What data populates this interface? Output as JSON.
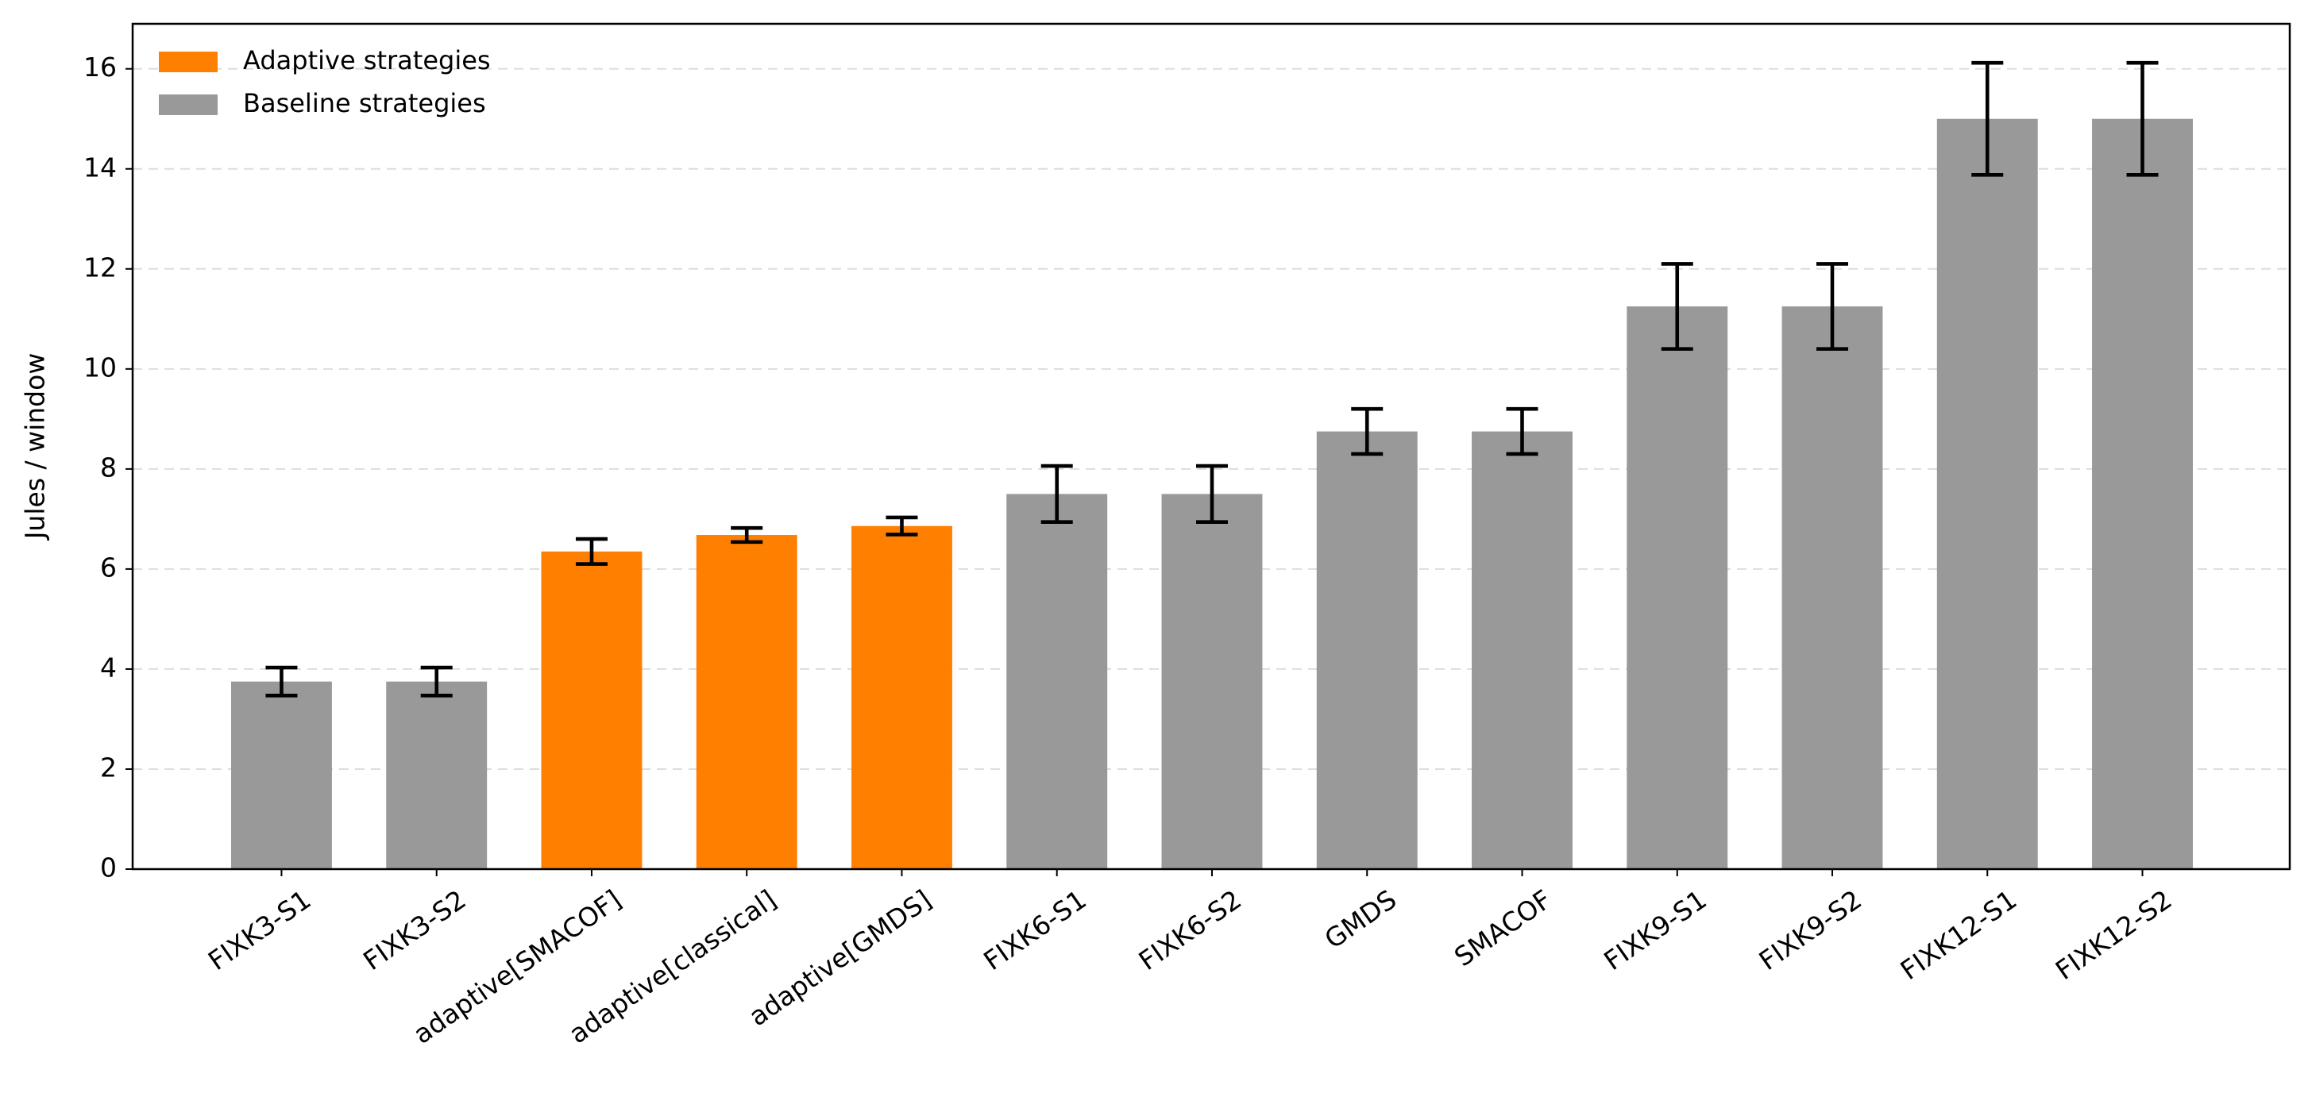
{
  "chart_data": {
    "type": "bar",
    "y_label": "Jules / window",
    "categories": [
      "FIXK3-S1",
      "FIXK3-S2",
      "adaptive[SMACOF]",
      "adaptive[classical]",
      "adaptive[GMDS]",
      "FIXK6-S1",
      "FIXK6-S2",
      "GMDS",
      "SMACOF",
      "FIXK9-S1",
      "FIXK9-S2",
      "FIXK12-S1",
      "FIXK12-S2"
    ],
    "series": [
      {
        "name": "Adaptive strategies",
        "color": "#ff7f00",
        "values": [
          null,
          null,
          6.35,
          6.68,
          6.86,
          null,
          null,
          null,
          null,
          null,
          null,
          null,
          null
        ],
        "errors": [
          null,
          null,
          0.25,
          0.14,
          0.17,
          null,
          null,
          null,
          null,
          null,
          null,
          null,
          null
        ]
      },
      {
        "name": "Baseline strategies",
        "color": "#999999",
        "values": [
          3.75,
          3.75,
          null,
          null,
          null,
          7.5,
          7.5,
          8.75,
          8.75,
          11.25,
          11.25,
          15,
          15
        ],
        "errors": [
          0.28,
          0.28,
          null,
          null,
          null,
          0.56,
          0.56,
          0.45,
          0.45,
          0.85,
          0.85,
          1.12,
          1.12
        ]
      }
    ],
    "ylim": [
      0,
      16.9
    ],
    "yticks": [
      0,
      2,
      4,
      6,
      8,
      10,
      12,
      14,
      16
    ],
    "grid": true,
    "legend": "upper left"
  }
}
